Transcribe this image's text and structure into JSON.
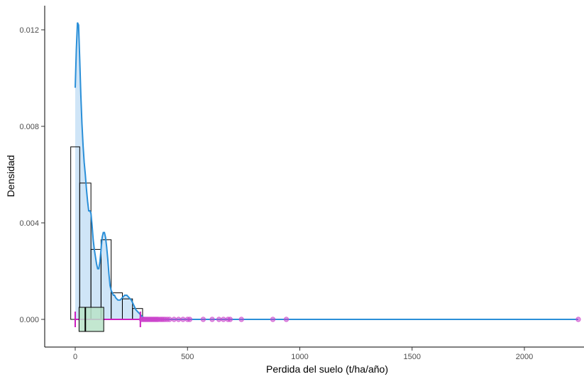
{
  "chart_data": {
    "type": "histogram-density",
    "title": "",
    "xlabel": "Perdida del suelo (t/ha/año)",
    "ylabel": "Densidad",
    "xlim": [
      -130,
      2250
    ],
    "ylim": [
      -0.0013,
      0.0129
    ],
    "x_ticks": [
      0,
      500,
      1000,
      1500,
      2000
    ],
    "y_ticks": [
      0.0,
      0.004,
      0.008,
      0.012
    ],
    "x_tick_labels": [
      "0",
      "500",
      "1000",
      "1500",
      "2000"
    ],
    "y_tick_labels": [
      "0.000",
      "0.004",
      "0.008",
      "0.012"
    ],
    "grid": false,
    "histogram": {
      "bins": [
        {
          "x0": -20,
          "x1": 20,
          "density": 0.00715
        },
        {
          "x0": 20,
          "x1": 70,
          "density": 0.00565
        },
        {
          "x0": 70,
          "x1": 115,
          "density": 0.0029
        },
        {
          "x0": 115,
          "x1": 160,
          "density": 0.0033
        },
        {
          "x0": 160,
          "x1": 210,
          "density": 0.0011
        },
        {
          "x0": 210,
          "x1": 255,
          "density": 0.00085
        },
        {
          "x0": 255,
          "x1": 300,
          "density": 0.00045
        }
      ]
    },
    "density_curve": {
      "x": [
        0,
        5,
        10,
        15,
        20,
        25,
        30,
        35,
        40,
        45,
        50,
        55,
        60,
        65,
        70,
        75,
        80,
        85,
        90,
        95,
        100,
        105,
        110,
        115,
        120,
        125,
        130,
        135,
        140,
        145,
        150,
        155,
        160,
        165,
        170,
        175,
        180,
        190,
        200,
        210,
        220,
        230,
        240,
        250,
        260,
        270,
        280,
        290,
        300,
        310,
        330,
        360,
        400,
        500,
        700,
        1000,
        1500,
        2000,
        2240
      ],
      "y": [
        0.0096,
        0.0112,
        0.0123,
        0.0122,
        0.0108,
        0.0093,
        0.0081,
        0.0072,
        0.0065,
        0.006,
        0.0054,
        0.0049,
        0.0045,
        0.0045,
        0.0044,
        0.0039,
        0.0033,
        0.0029,
        0.0026,
        0.0023,
        0.0021,
        0.0021,
        0.0024,
        0.0029,
        0.0034,
        0.0036,
        0.0036,
        0.0034,
        0.003,
        0.0025,
        0.0019,
        0.0014,
        0.0012,
        0.0011,
        0.001,
        0.001,
        0.0009,
        0.0008,
        0.0008,
        0.0009,
        0.001,
        0.001,
        0.0009,
        0.0008,
        0.0006,
        0.0004,
        0.0003,
        0.0002,
        0.0001,
        5e-05,
        2e-05,
        1e-05,
        0.0,
        0.0,
        0.0,
        0.0,
        0.0,
        0.0,
        0.0
      ]
    },
    "boxplot": {
      "q1": 17,
      "median": 45,
      "q3": 127,
      "whisker_low": 0,
      "whisker_high": 290,
      "outliers": [
        295,
        300,
        305,
        310,
        315,
        320,
        325,
        330,
        335,
        340,
        345,
        350,
        355,
        360,
        365,
        370,
        378,
        385,
        392,
        400,
        410,
        420,
        440,
        460,
        480,
        500,
        510,
        570,
        610,
        640,
        660,
        680,
        690,
        740,
        880,
        940,
        2240
      ]
    },
    "colors": {
      "curve": "#2a8fd8",
      "density_fill": "#cfe5f7",
      "hist_stroke": "#000000",
      "box_fill": "#b8e3c8",
      "whisker": "#cc1fbf",
      "outlier": "#cc44cc"
    }
  }
}
